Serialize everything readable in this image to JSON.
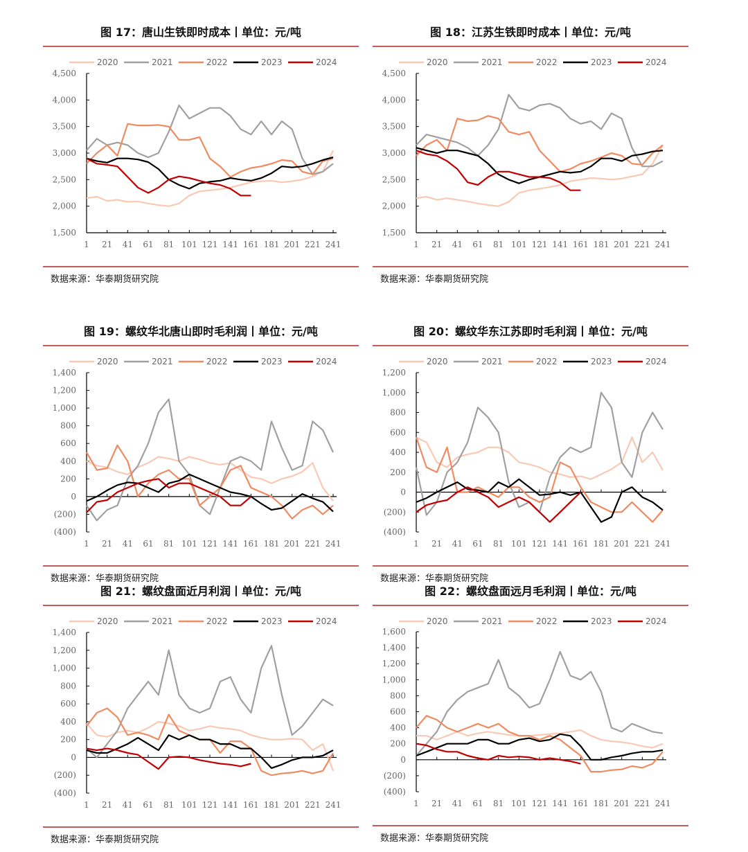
{
  "source_label": "数据来源：华泰期货研究院",
  "colors": {
    "2020": "#f9c9b3",
    "2021": "#a0a0a0",
    "2022": "#f08a60",
    "2023": "#000000",
    "2024": "#c00000",
    "rule": "#c9585a",
    "negative_tick": "#e00000"
  },
  "chart_data": [
    {
      "type": "line",
      "title": "图 17：唐山生铁即时成本丨单位：元/吨",
      "ylim": [
        1500,
        4500
      ],
      "yticks": [
        1500,
        2000,
        2500,
        3000,
        3500,
        4000,
        4500
      ],
      "xticks": [
        1,
        21,
        41,
        61,
        81,
        101,
        121,
        141,
        161,
        181,
        201,
        221,
        241
      ],
      "x_step": 10,
      "x_start": 1,
      "legend": "top",
      "series": [
        {
          "name": "2020",
          "values": [
            2150,
            2180,
            2100,
            2120,
            2080,
            2090,
            2050,
            2020,
            2000,
            2050,
            2200,
            2280,
            2300,
            2320,
            2350,
            2400,
            2450,
            2470,
            2480,
            2450,
            2470,
            2500,
            2560,
            2650,
            3050
          ]
        },
        {
          "name": "2021",
          "values": [
            3050,
            3270,
            3150,
            3200,
            3150,
            3000,
            2920,
            3000,
            3400,
            3900,
            3650,
            3750,
            3850,
            3850,
            3700,
            3450,
            3350,
            3600,
            3350,
            3600,
            3450,
            2900,
            2600,
            2650,
            2800
          ]
        },
        {
          "name": "2022",
          "values": [
            2800,
            3000,
            3150,
            2950,
            3550,
            3520,
            3520,
            3530,
            3500,
            3250,
            3250,
            3300,
            2900,
            2750,
            2550,
            2650,
            2720,
            2750,
            2800,
            2870,
            2850,
            2650,
            2600,
            2850,
            2900
          ]
        },
        {
          "name": "2023",
          "values": [
            2900,
            2850,
            2820,
            2900,
            2900,
            2880,
            2830,
            2700,
            2500,
            2400,
            2330,
            2430,
            2460,
            2480,
            2530,
            2500,
            2480,
            2530,
            2620,
            2750,
            2730,
            2750,
            2800,
            2870,
            2920
          ]
        },
        {
          "name": "2024",
          "values": [
            2900,
            2800,
            2780,
            2750,
            2550,
            2350,
            2250,
            2350,
            2500,
            2560,
            2530,
            2480,
            2430,
            2400,
            2330,
            2200,
            2200
          ]
        }
      ]
    },
    {
      "type": "line",
      "title": "图 18：江苏生铁即时成本丨单位：元/吨",
      "ylim": [
        1500,
        4500
      ],
      "yticks": [
        1500,
        2000,
        2500,
        3000,
        3500,
        4000,
        4500
      ],
      "xticks": [
        1,
        21,
        41,
        61,
        81,
        101,
        121,
        141,
        161,
        181,
        201,
        221,
        241
      ],
      "x_step": 10,
      "x_start": 1,
      "legend": "top",
      "series": [
        {
          "name": "2020",
          "values": [
            2150,
            2180,
            2120,
            2150,
            2120,
            2090,
            2050,
            2020,
            2000,
            2080,
            2250,
            2300,
            2330,
            2360,
            2400,
            2470,
            2500,
            2530,
            2520,
            2500,
            2520,
            2560,
            2600,
            2800,
            3150
          ]
        },
        {
          "name": "2021",
          "values": [
            3150,
            3350,
            3300,
            3250,
            3200,
            3100,
            2950,
            3150,
            3450,
            4100,
            3850,
            3800,
            3900,
            3930,
            3850,
            3650,
            3550,
            3600,
            3450,
            3750,
            3650,
            3100,
            2750,
            2750,
            2850
          ]
        },
        {
          "name": "2022",
          "values": [
            2950,
            3150,
            3250,
            3050,
            3650,
            3600,
            3620,
            3700,
            3650,
            3400,
            3350,
            3400,
            3050,
            2850,
            2650,
            2700,
            2800,
            2850,
            2920,
            3000,
            2950,
            2800,
            2780,
            3000,
            3150
          ]
        },
        {
          "name": "2023",
          "values": [
            3100,
            3050,
            3000,
            3050,
            3050,
            3000,
            2950,
            2800,
            2600,
            2500,
            2430,
            2500,
            2550,
            2600,
            2650,
            2630,
            2650,
            2750,
            2900,
            2900,
            2850,
            2950,
            2980,
            3030,
            3050
          ]
        },
        {
          "name": "2024",
          "values": [
            3050,
            2980,
            2950,
            2850,
            2700,
            2450,
            2400,
            2550,
            2650,
            2650,
            2600,
            2550,
            2550,
            2530,
            2450,
            2300,
            2300
          ]
        }
      ]
    },
    {
      "type": "line",
      "title": "图 19：螺纹华北唐山即时毛利润丨单位：元/吨",
      "ylim": [
        -400,
        1400
      ],
      "yticks": [
        -400,
        -200,
        0,
        200,
        400,
        600,
        800,
        1000,
        1200,
        1400
      ],
      "xticks": [
        1,
        21,
        41,
        61,
        81,
        101,
        121,
        141,
        161,
        181,
        201,
        221,
        241
      ],
      "x_step": 10,
      "x_start": 1,
      "legend": "top",
      "series": [
        {
          "name": "2020",
          "values": [
            400,
            350,
            330,
            280,
            250,
            330,
            380,
            450,
            430,
            400,
            450,
            420,
            380,
            360,
            380,
            300,
            220,
            200,
            150,
            200,
            230,
            280,
            380,
            100,
            -50
          ]
        },
        {
          "name": "2021",
          "values": [
            -100,
            -270,
            -150,
            -100,
            200,
            350,
            600,
            950,
            1100,
            400,
            250,
            -100,
            -200,
            100,
            400,
            450,
            400,
            300,
            850,
            550,
            300,
            350,
            850,
            750,
            500
          ]
        },
        {
          "name": "2022",
          "values": [
            500,
            300,
            320,
            580,
            400,
            0,
            150,
            250,
            300,
            200,
            200,
            -100,
            0,
            100,
            300,
            350,
            100,
            50,
            0,
            -100,
            -250,
            -150,
            -100,
            -200,
            -100
          ]
        },
        {
          "name": "2023",
          "values": [
            -50,
            0,
            70,
            130,
            160,
            150,
            100,
            50,
            150,
            180,
            250,
            200,
            150,
            100,
            50,
            30,
            0,
            -80,
            -150,
            -130,
            -50,
            30,
            -20,
            -60,
            -170
          ]
        },
        {
          "name": "2024",
          "values": [
            -180,
            -60,
            -40,
            50,
            100,
            150,
            180,
            200,
            100,
            150,
            150,
            100,
            50,
            0,
            -100,
            -100,
            0
          ]
        }
      ]
    },
    {
      "type": "line",
      "title": "图 20：螺纹华东江苏即时毛利润丨单位：元/吨",
      "ylim": [
        -400,
        1200
      ],
      "yticks": [
        -400,
        -200,
        0,
        200,
        400,
        600,
        800,
        1000,
        1200
      ],
      "xticks": [
        1,
        21,
        41,
        61,
        81,
        101,
        121,
        141,
        161,
        181,
        201,
        221,
        241
      ],
      "x_step": 10,
      "x_start": 1,
      "legend": "top",
      "series": [
        {
          "name": "2020",
          "values": [
            550,
            500,
            300,
            250,
            350,
            380,
            400,
            450,
            450,
            400,
            300,
            280,
            250,
            200,
            180,
            150,
            160,
            130,
            180,
            230,
            300,
            550,
            300,
            400,
            220
          ]
        },
        {
          "name": "2021",
          "values": [
            250,
            -230,
            -100,
            200,
            300,
            500,
            850,
            750,
            600,
            100,
            -150,
            -100,
            -200,
            150,
            350,
            450,
            400,
            450,
            1000,
            850,
            300,
            150,
            600,
            800,
            630
          ]
        },
        {
          "name": "2022",
          "values": [
            550,
            250,
            200,
            450,
            0,
            0,
            50,
            0,
            -50,
            50,
            50,
            -50,
            -100,
            -50,
            300,
            250,
            50,
            -100,
            -150,
            -200,
            -200,
            -100,
            -200,
            -300,
            -180
          ]
        },
        {
          "name": "2023",
          "values": [
            -100,
            -60,
            0,
            50,
            100,
            30,
            20,
            0,
            100,
            50,
            130,
            50,
            -30,
            -20,
            0,
            -30,
            0,
            -150,
            -300,
            -250,
            0,
            50,
            -50,
            -100,
            -180
          ]
        },
        {
          "name": "2024",
          "values": [
            -200,
            -130,
            -100,
            -80,
            0,
            50,
            0,
            -50,
            -150,
            -100,
            -50,
            -100,
            -200,
            -300,
            -200,
            -100,
            0
          ]
        }
      ]
    },
    {
      "type": "line",
      "title": "图 21：螺纹盘面近月利润丨单位：元/吨",
      "ylim": [
        -400,
        1400
      ],
      "yticks": [
        -400,
        -200,
        0,
        200,
        400,
        600,
        800,
        1000,
        1200,
        1400
      ],
      "xticks": [
        1,
        21,
        41,
        61,
        81,
        101,
        121,
        141,
        161,
        181,
        201,
        221,
        241
      ],
      "x_step": 10,
      "x_start": 1,
      "legend": "top",
      "series": [
        {
          "name": "2020",
          "values": [
            380,
            250,
            230,
            280,
            300,
            280,
            330,
            400,
            380,
            350,
            300,
            320,
            350,
            330,
            320,
            300,
            250,
            220,
            200,
            200,
            210,
            200,
            80,
            150,
            -150
          ]
        },
        {
          "name": "2021",
          "values": [
            100,
            0,
            150,
            300,
            550,
            700,
            850,
            700,
            1200,
            700,
            550,
            500,
            550,
            850,
            900,
            650,
            500,
            1000,
            1250,
            700,
            250,
            350,
            500,
            650,
            580
          ]
        },
        {
          "name": "2022",
          "values": [
            350,
            500,
            550,
            450,
            250,
            280,
            250,
            200,
            480,
            300,
            250,
            200,
            200,
            50,
            180,
            180,
            100,
            -150,
            -200,
            -180,
            -170,
            -150,
            -180,
            -150,
            50
          ]
        },
        {
          "name": "2023",
          "values": [
            80,
            50,
            50,
            100,
            150,
            220,
            150,
            80,
            250,
            200,
            250,
            200,
            200,
            150,
            150,
            100,
            100,
            0,
            -120,
            -80,
            -30,
            0,
            0,
            20,
            80
          ]
        },
        {
          "name": "2024",
          "values": [
            100,
            80,
            100,
            80,
            50,
            30,
            -50,
            -130,
            0,
            10,
            0,
            -30,
            -50,
            -70,
            -80,
            -100,
            -70
          ]
        }
      ]
    },
    {
      "type": "line",
      "title": "图 22：螺纹盘面远月毛利润丨单位：元/吨",
      "ylim": [
        -400,
        1600
      ],
      "yticks": [
        -400,
        -200,
        0,
        200,
        400,
        600,
        800,
        1000,
        1200,
        1400,
        1600
      ],
      "xticks": [
        1,
        21,
        41,
        61,
        81,
        101,
        121,
        141,
        161,
        181,
        201,
        221,
        241
      ],
      "x_step": 10,
      "x_start": 1,
      "legend": "top",
      "series": [
        {
          "name": "2020",
          "values": [
            300,
            300,
            250,
            300,
            350,
            300,
            330,
            350,
            330,
            310,
            300,
            300,
            310,
            320,
            330,
            350,
            370,
            300,
            250,
            230,
            220,
            200,
            170,
            150,
            200
          ]
        },
        {
          "name": "2021",
          "values": [
            50,
            200,
            350,
            600,
            750,
            850,
            900,
            950,
            1250,
            900,
            800,
            650,
            700,
            1000,
            1350,
            1050,
            1000,
            1100,
            850,
            400,
            350,
            450,
            400,
            350,
            330
          ]
        },
        {
          "name": "2022",
          "values": [
            400,
            550,
            500,
            400,
            350,
            400,
            450,
            400,
            450,
            350,
            300,
            300,
            250,
            300,
            250,
            150,
            50,
            -150,
            -150,
            -130,
            -120,
            -80,
            -100,
            -50,
            100
          ]
        },
        {
          "name": "2023",
          "values": [
            50,
            100,
            150,
            200,
            200,
            200,
            250,
            250,
            200,
            200,
            250,
            270,
            230,
            250,
            320,
            300,
            170,
            0,
            0,
            30,
            50,
            80,
            100,
            100,
            120
          ]
        },
        {
          "name": "2024",
          "values": [
            200,
            180,
            130,
            100,
            100,
            50,
            20,
            0,
            50,
            30,
            40,
            30,
            0,
            20,
            0,
            -20,
            -50
          ]
        }
      ]
    }
  ]
}
